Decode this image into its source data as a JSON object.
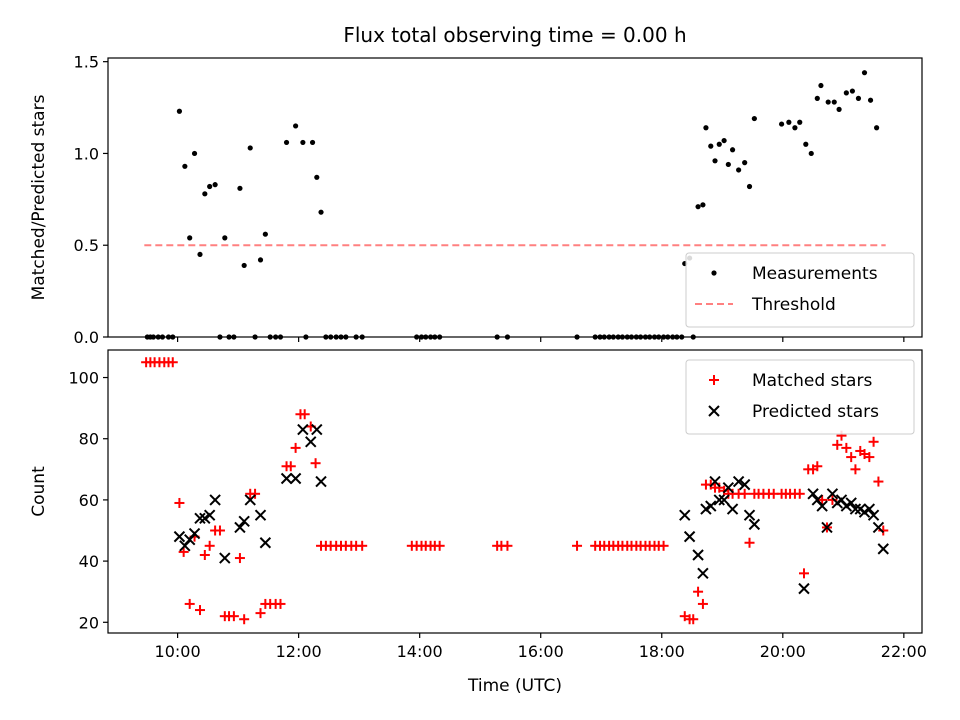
{
  "title": "Flux total observing time = 0.00 h",
  "xlabel": "Time (UTC)",
  "colors": {
    "matched": "#ff0000",
    "predicted": "#000000",
    "threshold": "#ff8080",
    "measurement": "#000000"
  },
  "chart_data": [
    {
      "type": "scatter",
      "panel": "top",
      "ylabel": "Matched/Predicted stars",
      "xlim": [
        8.85,
        22.3
      ],
      "ylim": [
        0,
        1.52
      ],
      "yticks": [
        0,
        0.5,
        1.0,
        1.5
      ],
      "ytick_labels": [
        "0.0",
        "0.5",
        "1.0",
        "1.5"
      ],
      "grid": false,
      "legend_position": "bottom-right",
      "threshold": {
        "name": "Threshold",
        "y": 0.5,
        "x_range": [
          9.45,
          21.7
        ],
        "style": "dashed"
      },
      "series": [
        {
          "name": "Measurements",
          "points": [
            [
              9.5,
              0
            ],
            [
              9.55,
              0
            ],
            [
              9.6,
              0
            ],
            [
              9.68,
              0
            ],
            [
              9.75,
              0
            ],
            [
              9.85,
              0
            ],
            [
              9.92,
              0
            ],
            [
              10.03,
              1.23
            ],
            [
              10.12,
              0.93
            ],
            [
              10.2,
              0.54
            ],
            [
              10.28,
              1.0
            ],
            [
              10.37,
              0.45
            ],
            [
              10.45,
              0.78
            ],
            [
              10.53,
              0.82
            ],
            [
              10.62,
              0.83
            ],
            [
              10.7,
              0
            ],
            [
              10.78,
              0.54
            ],
            [
              10.85,
              0
            ],
            [
              10.93,
              0
            ],
            [
              11.03,
              0.81
            ],
            [
              11.1,
              0.39
            ],
            [
              11.2,
              1.03
            ],
            [
              11.28,
              0
            ],
            [
              11.37,
              0.42
            ],
            [
              11.45,
              0.56
            ],
            [
              11.53,
              0
            ],
            [
              11.62,
              0
            ],
            [
              11.7,
              0
            ],
            [
              11.8,
              1.06
            ],
            [
              11.95,
              1.15
            ],
            [
              12.07,
              1.06
            ],
            [
              12.23,
              1.06
            ],
            [
              12.3,
              0.87
            ],
            [
              12.37,
              0.68
            ],
            [
              12.12,
              0
            ],
            [
              12.45,
              0
            ],
            [
              12.53,
              0
            ],
            [
              12.62,
              0
            ],
            [
              12.7,
              0
            ],
            [
              12.78,
              0
            ],
            [
              12.95,
              0
            ],
            [
              13.05,
              0
            ],
            [
              13.95,
              0
            ],
            [
              14.03,
              0
            ],
            [
              14.1,
              0
            ],
            [
              14.18,
              0
            ],
            [
              14.25,
              0
            ],
            [
              14.33,
              0
            ],
            [
              15.28,
              0
            ],
            [
              15.45,
              0
            ],
            [
              16.6,
              0
            ],
            [
              16.9,
              0
            ],
            [
              16.98,
              0
            ],
            [
              17.05,
              0
            ],
            [
              17.13,
              0
            ],
            [
              17.2,
              0
            ],
            [
              17.28,
              0
            ],
            [
              17.35,
              0
            ],
            [
              17.43,
              0
            ],
            [
              17.5,
              0
            ],
            [
              17.58,
              0
            ],
            [
              17.65,
              0
            ],
            [
              17.73,
              0
            ],
            [
              17.8,
              0
            ],
            [
              17.88,
              0
            ],
            [
              17.95,
              0
            ],
            [
              18.03,
              0
            ],
            [
              18.1,
              0
            ],
            [
              18.18,
              0
            ],
            [
              18.25,
              0
            ],
            [
              18.33,
              0
            ],
            [
              18.38,
              0.4
            ],
            [
              18.46,
              0.43
            ],
            [
              18.52,
              0
            ],
            [
              18.6,
              0.71
            ],
            [
              18.68,
              0.72
            ],
            [
              18.73,
              1.14
            ],
            [
              18.81,
              1.04
            ],
            [
              18.88,
              0.96
            ],
            [
              18.95,
              1.05
            ],
            [
              19.03,
              1.07
            ],
            [
              19.1,
              0.94
            ],
            [
              19.17,
              1.02
            ],
            [
              19.27,
              0.91
            ],
            [
              19.37,
              0.95
            ],
            [
              19.45,
              0.82
            ],
            [
              19.53,
              1.19
            ],
            [
              19.98,
              1.16
            ],
            [
              20.1,
              1.17
            ],
            [
              20.2,
              1.14
            ],
            [
              20.28,
              1.17
            ],
            [
              20.38,
              1.05
            ],
            [
              20.47,
              1.0
            ],
            [
              20.57,
              1.3
            ],
            [
              20.63,
              1.37
            ],
            [
              20.75,
              1.28
            ],
            [
              20.85,
              1.28
            ],
            [
              20.93,
              1.24
            ],
            [
              21.05,
              1.33
            ],
            [
              21.15,
              1.34
            ],
            [
              21.25,
              1.3
            ],
            [
              21.35,
              1.44
            ],
            [
              21.45,
              1.29
            ],
            [
              21.55,
              1.14
            ]
          ]
        }
      ]
    },
    {
      "type": "scatter",
      "panel": "bottom",
      "ylabel": "Count",
      "xlim": [
        8.85,
        22.3
      ],
      "ylim": [
        16.5,
        109
      ],
      "yticks": [
        20,
        40,
        60,
        80,
        100
      ],
      "ytick_labels": [
        "20",
        "40",
        "60",
        "80",
        "100"
      ],
      "xticks": [
        10,
        12,
        14,
        16,
        18,
        20,
        22
      ],
      "xtick_labels": [
        "10:00",
        "12:00",
        "14:00",
        "16:00",
        "18:00",
        "20:00",
        "22:00"
      ],
      "grid": false,
      "legend_position": "top-right",
      "series": [
        {
          "name": "Matched stars",
          "marker": "plus",
          "points": [
            [
              9.48,
              105
            ],
            [
              9.55,
              105
            ],
            [
              9.62,
              105
            ],
            [
              9.7,
              105
            ],
            [
              9.78,
              105
            ],
            [
              9.85,
              105
            ],
            [
              9.92,
              105
            ],
            [
              10.03,
              59
            ],
            [
              10.1,
              43
            ],
            [
              10.2,
              26
            ],
            [
              10.28,
              48
            ],
            [
              10.37,
              24
            ],
            [
              10.45,
              42
            ],
            [
              10.53,
              45
            ],
            [
              10.62,
              50
            ],
            [
              10.7,
              50
            ],
            [
              10.78,
              22
            ],
            [
              10.85,
              22
            ],
            [
              10.93,
              22
            ],
            [
              11.03,
              41
            ],
            [
              11.1,
              21
            ],
            [
              11.2,
              62
            ],
            [
              11.28,
              62
            ],
            [
              11.37,
              23
            ],
            [
              11.45,
              26
            ],
            [
              11.53,
              26
            ],
            [
              11.62,
              26
            ],
            [
              11.7,
              26
            ],
            [
              11.8,
              71
            ],
            [
              11.87,
              71
            ],
            [
              11.95,
              77
            ],
            [
              12.03,
              88
            ],
            [
              12.1,
              88
            ],
            [
              12.2,
              84
            ],
            [
              12.28,
              72
            ],
            [
              12.37,
              45
            ],
            [
              12.45,
              45
            ],
            [
              12.53,
              45
            ],
            [
              12.62,
              45
            ],
            [
              12.7,
              45
            ],
            [
              12.78,
              45
            ],
            [
              12.87,
              45
            ],
            [
              12.95,
              45
            ],
            [
              13.05,
              45
            ],
            [
              13.87,
              45
            ],
            [
              13.95,
              45
            ],
            [
              14.03,
              45
            ],
            [
              14.1,
              45
            ],
            [
              14.18,
              45
            ],
            [
              14.25,
              45
            ],
            [
              14.33,
              45
            ],
            [
              15.28,
              45
            ],
            [
              15.35,
              45
            ],
            [
              15.45,
              45
            ],
            [
              16.6,
              45
            ],
            [
              16.9,
              45
            ],
            [
              16.98,
              45
            ],
            [
              17.05,
              45
            ],
            [
              17.13,
              45
            ],
            [
              17.2,
              45
            ],
            [
              17.28,
              45
            ],
            [
              17.35,
              45
            ],
            [
              17.43,
              45
            ],
            [
              17.5,
              45
            ],
            [
              17.58,
              45
            ],
            [
              17.65,
              45
            ],
            [
              17.73,
              45
            ],
            [
              17.8,
              45
            ],
            [
              17.88,
              45
            ],
            [
              17.95,
              45
            ],
            [
              18.03,
              45
            ],
            [
              18.38,
              22
            ],
            [
              18.46,
              21
            ],
            [
              18.52,
              21
            ],
            [
              18.6,
              30
            ],
            [
              18.68,
              26
            ],
            [
              18.73,
              65
            ],
            [
              18.81,
              65
            ],
            [
              18.88,
              64
            ],
            [
              18.95,
              64
            ],
            [
              19.03,
              63
            ],
            [
              19.1,
              62
            ],
            [
              19.17,
              62
            ],
            [
              19.27,
              62
            ],
            [
              19.37,
              62
            ],
            [
              19.45,
              46
            ],
            [
              19.53,
              62
            ],
            [
              19.6,
              62
            ],
            [
              19.68,
              62
            ],
            [
              19.77,
              62
            ],
            [
              19.85,
              62
            ],
            [
              19.98,
              62
            ],
            [
              20.05,
              62
            ],
            [
              20.12,
              62
            ],
            [
              20.2,
              62
            ],
            [
              20.28,
              62
            ],
            [
              20.35,
              36
            ],
            [
              20.42,
              70
            ],
            [
              20.5,
              70
            ],
            [
              20.57,
              71
            ],
            [
              20.65,
              60
            ],
            [
              20.73,
              51
            ],
            [
              20.82,
              60
            ],
            [
              20.9,
              78
            ],
            [
              20.97,
              81
            ],
            [
              21.05,
              77
            ],
            [
              21.13,
              74
            ],
            [
              21.2,
              70
            ],
            [
              21.28,
              76
            ],
            [
              21.35,
              75
            ],
            [
              21.43,
              74
            ],
            [
              21.5,
              79
            ],
            [
              21.58,
              66
            ],
            [
              21.66,
              50
            ]
          ]
        },
        {
          "name": "Predicted stars",
          "marker": "x",
          "points": [
            [
              10.03,
              48
            ],
            [
              10.12,
              45
            ],
            [
              10.2,
              47
            ],
            [
              10.28,
              49
            ],
            [
              10.37,
              54
            ],
            [
              10.45,
              54
            ],
            [
              10.53,
              55
            ],
            [
              10.62,
              60
            ],
            [
              10.78,
              41
            ],
            [
              11.03,
              51
            ],
            [
              11.1,
              53
            ],
            [
              11.2,
              60
            ],
            [
              11.37,
              55
            ],
            [
              11.45,
              46
            ],
            [
              11.8,
              67
            ],
            [
              11.95,
              67
            ],
            [
              12.07,
              83
            ],
            [
              12.2,
              79
            ],
            [
              12.3,
              83
            ],
            [
              12.37,
              66
            ],
            [
              18.38,
              55
            ],
            [
              18.46,
              48
            ],
            [
              18.6,
              42
            ],
            [
              18.68,
              36
            ],
            [
              18.73,
              57
            ],
            [
              18.81,
              58
            ],
            [
              18.88,
              66
            ],
            [
              18.95,
              60
            ],
            [
              19.03,
              60
            ],
            [
              19.1,
              64
            ],
            [
              19.17,
              57
            ],
            [
              19.27,
              66
            ],
            [
              19.37,
              65
            ],
            [
              19.45,
              55
            ],
            [
              19.53,
              52
            ],
            [
              20.35,
              31
            ],
            [
              20.5,
              62
            ],
            [
              20.57,
              60
            ],
            [
              20.65,
              58
            ],
            [
              20.73,
              51
            ],
            [
              20.82,
              62
            ],
            [
              20.9,
              59
            ],
            [
              20.97,
              60
            ],
            [
              21.05,
              58
            ],
            [
              21.13,
              59
            ],
            [
              21.2,
              57
            ],
            [
              21.28,
              57
            ],
            [
              21.35,
              56
            ],
            [
              21.43,
              57
            ],
            [
              21.5,
              55
            ],
            [
              21.58,
              51
            ],
            [
              21.66,
              44
            ]
          ]
        }
      ]
    }
  ]
}
